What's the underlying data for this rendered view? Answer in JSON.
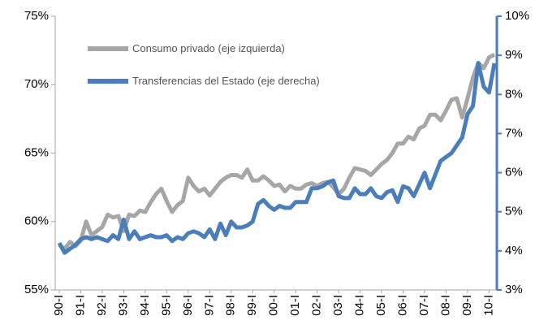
{
  "chart_data": {
    "type": "line",
    "categories": [
      "90-I",
      null,
      null,
      null,
      "91-I",
      null,
      null,
      null,
      "92-I",
      null,
      null,
      null,
      "93-I",
      null,
      null,
      null,
      "94-I",
      null,
      null,
      null,
      "95-I",
      null,
      null,
      null,
      "96-I",
      null,
      null,
      null,
      "97-I",
      null,
      null,
      null,
      "98-I",
      null,
      null,
      null,
      "99-I",
      null,
      null,
      null,
      "00-I",
      null,
      null,
      null,
      "01-I",
      null,
      null,
      null,
      "02-I",
      null,
      null,
      null,
      "03-I",
      null,
      null,
      null,
      "04-I",
      null,
      null,
      null,
      "05-I",
      null,
      null,
      null,
      "06-I",
      null,
      null,
      null,
      "07-I",
      null,
      null,
      null,
      "08-I",
      null,
      null,
      null,
      "09-I",
      null,
      null,
      null,
      "10-I",
      null
    ],
    "series": [
      {
        "name": "Consumo privado (eje izquierda)",
        "color": "#a6a6a6",
        "axis": "y",
        "values": [
          58.3,
          58.0,
          58.5,
          58.2,
          58.6,
          60.0,
          59.0,
          59.3,
          59.6,
          60.5,
          60.3,
          60.4,
          59.3,
          60.5,
          60.4,
          60.8,
          60.7,
          61.4,
          62.0,
          62.4,
          61.5,
          60.7,
          61.2,
          61.5,
          63.2,
          62.6,
          62.2,
          62.4,
          61.9,
          62.4,
          62.9,
          63.2,
          63.4,
          63.4,
          63.2,
          63.8,
          63.0,
          63.0,
          63.3,
          63.0,
          62.6,
          62.7,
          62.2,
          62.6,
          62.4,
          62.4,
          62.7,
          62.8,
          62.6,
          62.8,
          62.9,
          62.5,
          62.0,
          62.4,
          63.2,
          63.9,
          63.8,
          63.7,
          63.4,
          63.8,
          64.2,
          64.5,
          65.0,
          65.7,
          65.7,
          66.2,
          66.0,
          66.8,
          67.0,
          67.8,
          67.8,
          67.4,
          68.1,
          68.9,
          69.0,
          67.6,
          69.0,
          70.5,
          71.6,
          71.2,
          72.0,
          72.2
        ]
      },
      {
        "name": "Transferencias del Estado (eje derecha)",
        "color": "#4a7ebb",
        "axis": "y2",
        "values": [
          4.2,
          3.95,
          4.05,
          4.15,
          4.3,
          4.35,
          4.3,
          4.35,
          4.3,
          4.25,
          4.4,
          4.3,
          4.8,
          4.3,
          4.5,
          4.3,
          4.35,
          4.4,
          4.35,
          4.35,
          4.4,
          4.25,
          4.35,
          4.3,
          4.45,
          4.5,
          4.45,
          4.35,
          4.55,
          4.3,
          4.7,
          4.4,
          4.75,
          4.6,
          4.6,
          4.65,
          4.75,
          5.2,
          5.3,
          5.15,
          5.05,
          5.15,
          5.1,
          5.1,
          5.25,
          5.25,
          5.25,
          5.6,
          5.6,
          5.65,
          5.75,
          5.8,
          5.4,
          5.35,
          5.35,
          5.6,
          5.45,
          5.45,
          5.6,
          5.4,
          5.35,
          5.5,
          5.55,
          5.25,
          5.65,
          5.6,
          5.4,
          5.7,
          6.0,
          5.6,
          5.95,
          6.3,
          6.4,
          6.5,
          6.7,
          6.9,
          7.5,
          7.7,
          8.8,
          8.2,
          8.05,
          8.8
        ]
      }
    ],
    "ylim": [
      55,
      75
    ],
    "yticks": [
      {
        "value": 55,
        "label": "55%"
      },
      {
        "value": 60,
        "label": "60%"
      },
      {
        "value": 65,
        "label": "65%"
      },
      {
        "value": 70,
        "label": "70%"
      },
      {
        "value": 75,
        "label": "75%"
      }
    ],
    "y2lim": [
      3,
      10
    ],
    "y2ticks": [
      {
        "value": 3,
        "label": "3%"
      },
      {
        "value": 4,
        "label": "4%"
      },
      {
        "value": 5,
        "label": "5%"
      },
      {
        "value": 6,
        "label": "6%"
      },
      {
        "value": 7,
        "label": "7%"
      },
      {
        "value": 8,
        "label": "8%"
      },
      {
        "value": 9,
        "label": "9%"
      },
      {
        "value": 10,
        "label": "10%"
      }
    ],
    "grid": false
  }
}
